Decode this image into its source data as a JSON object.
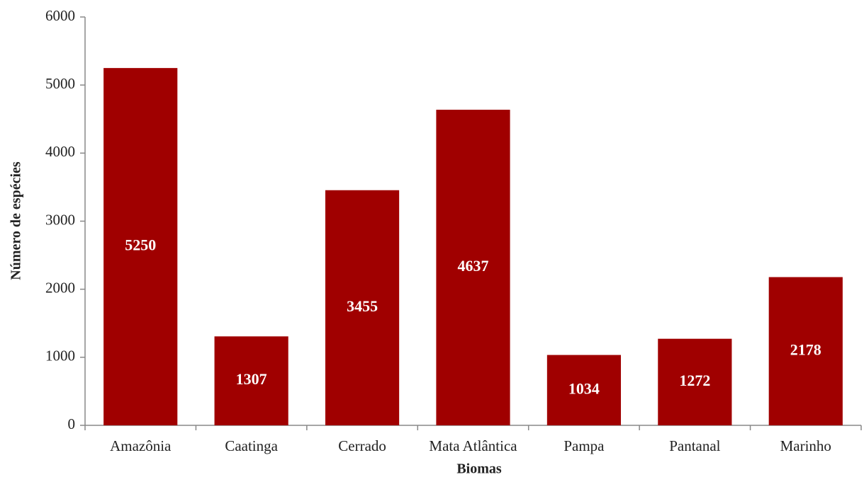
{
  "chart_data": {
    "type": "bar",
    "x_label": "Biomas",
    "y_label": "Número de espécies",
    "categories": [
      "Amazônia",
      "Caatinga",
      "Cerrado",
      "Mata Atlântica",
      "Pampa",
      "Pantanal",
      "Marinho"
    ],
    "values": [
      5250,
      1307,
      3455,
      4637,
      1034,
      1272,
      2178
    ],
    "color": "#a00000",
    "ylim": [
      0,
      6000
    ],
    "yticks": [
      0,
      1000,
      2000,
      3000,
      4000,
      5000,
      6000
    ],
    "grid": false
  }
}
